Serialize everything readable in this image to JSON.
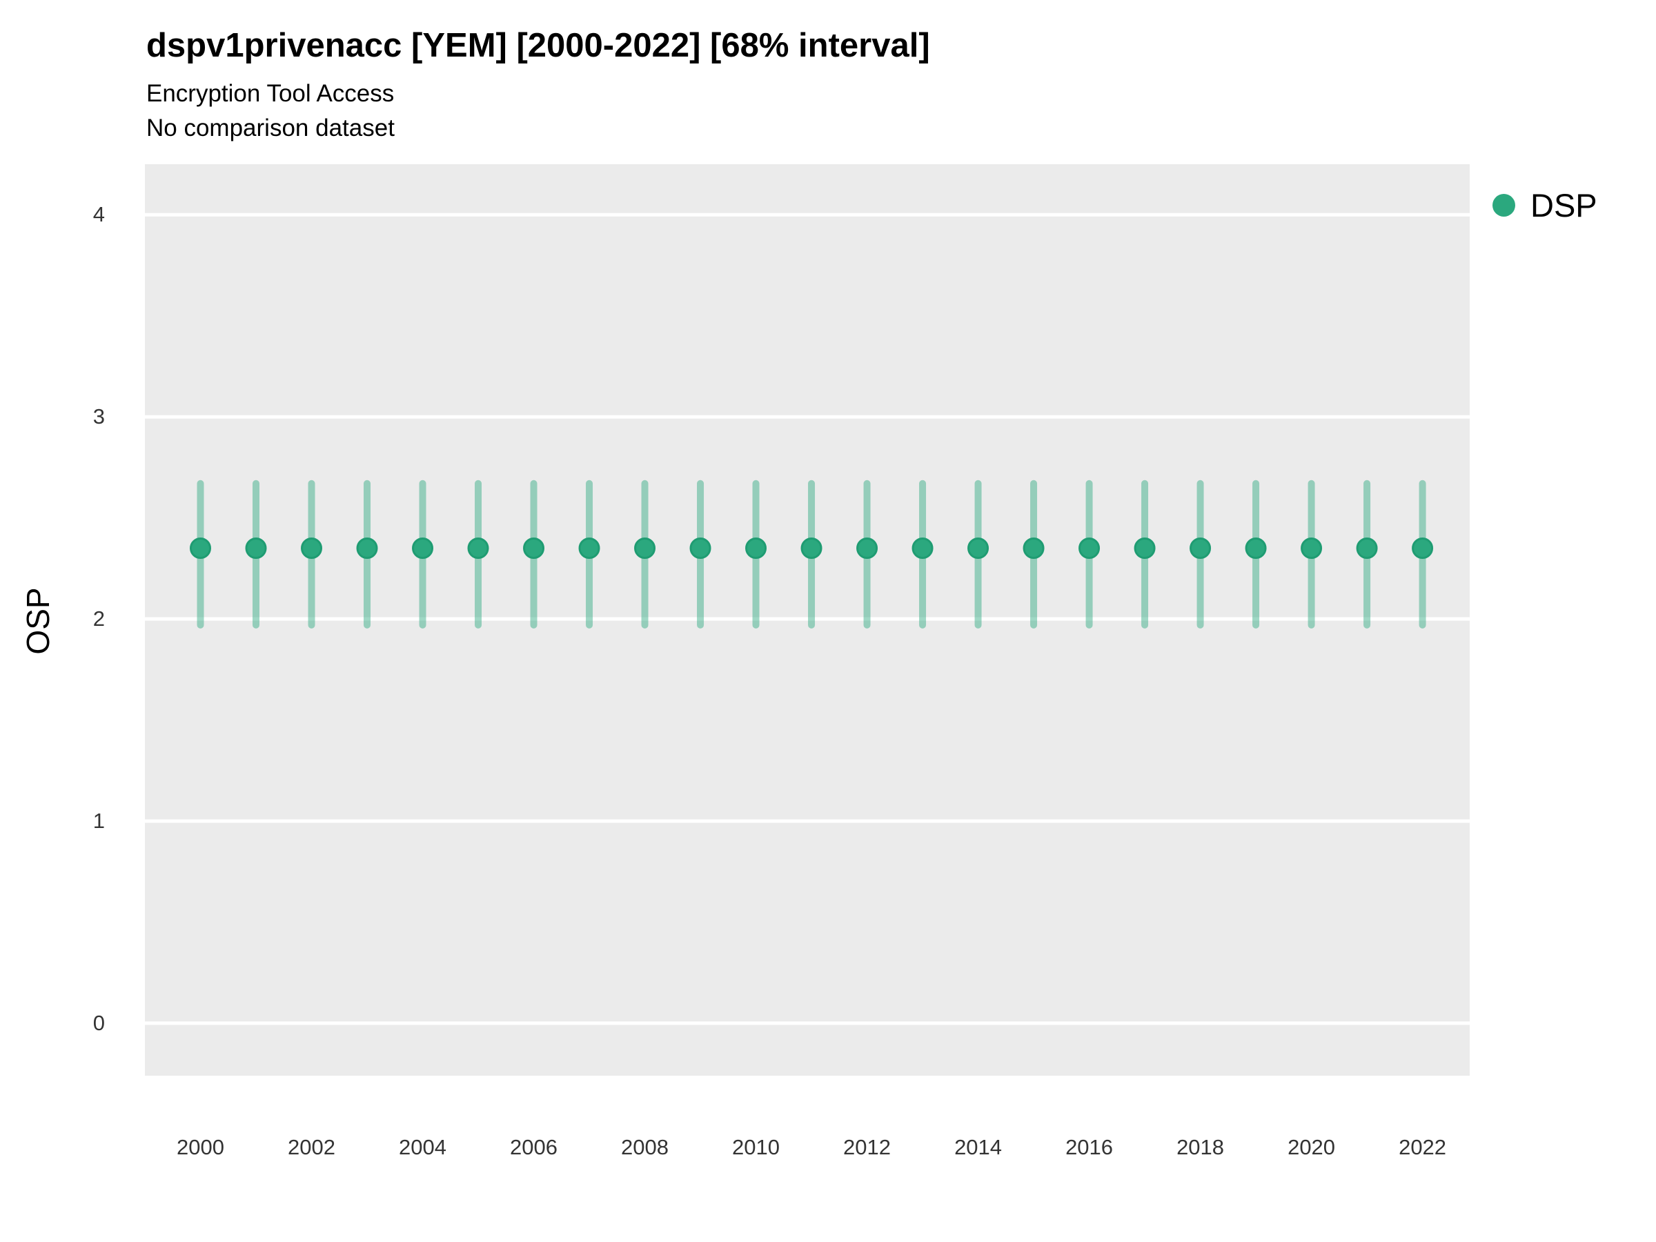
{
  "header": {
    "title": "dspv1privenacc [YEM] [2000-2022] [68% interval]",
    "subtitle": "Encryption Tool Access",
    "note": "No comparison dataset"
  },
  "legend": {
    "position": "right-top",
    "items": [
      {
        "label": "DSP",
        "color": "#2BA87E"
      }
    ]
  },
  "style": {
    "panel_bg": "#EBEBEB",
    "grid_color": "#FFFFFF",
    "point_fill": "#2BA87E",
    "point_stroke": "#1F9C72",
    "errorbar_color": "rgba(43,168,126,0.45)",
    "title_color": "#000000",
    "tick_text_color": "#333333"
  },
  "chart_data": {
    "type": "scatter",
    "title": "dspv1privenacc [YEM] [2000-2022] [68% interval]",
    "subtitle": "Encryption Tool Access",
    "note": "No comparison dataset",
    "xlabel": "",
    "ylabel": "OSP",
    "interval_label": "68% interval",
    "grid": "horizontal-major-only",
    "legend_position": "right-top",
    "x_ticks": [
      2000,
      2002,
      2004,
      2006,
      2008,
      2010,
      2012,
      2014,
      2016,
      2018,
      2020,
      2022
    ],
    "y_ticks": [
      0,
      1,
      2,
      3,
      4
    ],
    "xlim": [
      1999.0,
      2022.85
    ],
    "ylim": [
      -0.26,
      4.25
    ],
    "series": [
      {
        "name": "DSP",
        "color": "#2BA87E",
        "x": [
          2000,
          2001,
          2002,
          2003,
          2004,
          2005,
          2006,
          2007,
          2008,
          2009,
          2010,
          2011,
          2012,
          2013,
          2014,
          2015,
          2016,
          2017,
          2018,
          2019,
          2020,
          2021,
          2022
        ],
        "y": [
          2.35,
          2.35,
          2.35,
          2.35,
          2.35,
          2.35,
          2.35,
          2.35,
          2.35,
          2.35,
          2.35,
          2.35,
          2.35,
          2.35,
          2.35,
          2.35,
          2.35,
          2.35,
          2.35,
          2.35,
          2.35,
          2.35,
          2.35
        ],
        "y_lo": [
          1.97,
          1.97,
          1.97,
          1.97,
          1.97,
          1.97,
          1.97,
          1.97,
          1.97,
          1.97,
          1.97,
          1.97,
          1.97,
          1.97,
          1.97,
          1.97,
          1.97,
          1.97,
          1.97,
          1.97,
          1.97,
          1.97,
          1.97
        ],
        "y_hi": [
          2.67,
          2.67,
          2.67,
          2.67,
          2.67,
          2.67,
          2.67,
          2.67,
          2.67,
          2.67,
          2.67,
          2.67,
          2.67,
          2.67,
          2.67,
          2.67,
          2.67,
          2.67,
          2.67,
          2.67,
          2.67,
          2.67,
          2.67
        ]
      }
    ]
  }
}
